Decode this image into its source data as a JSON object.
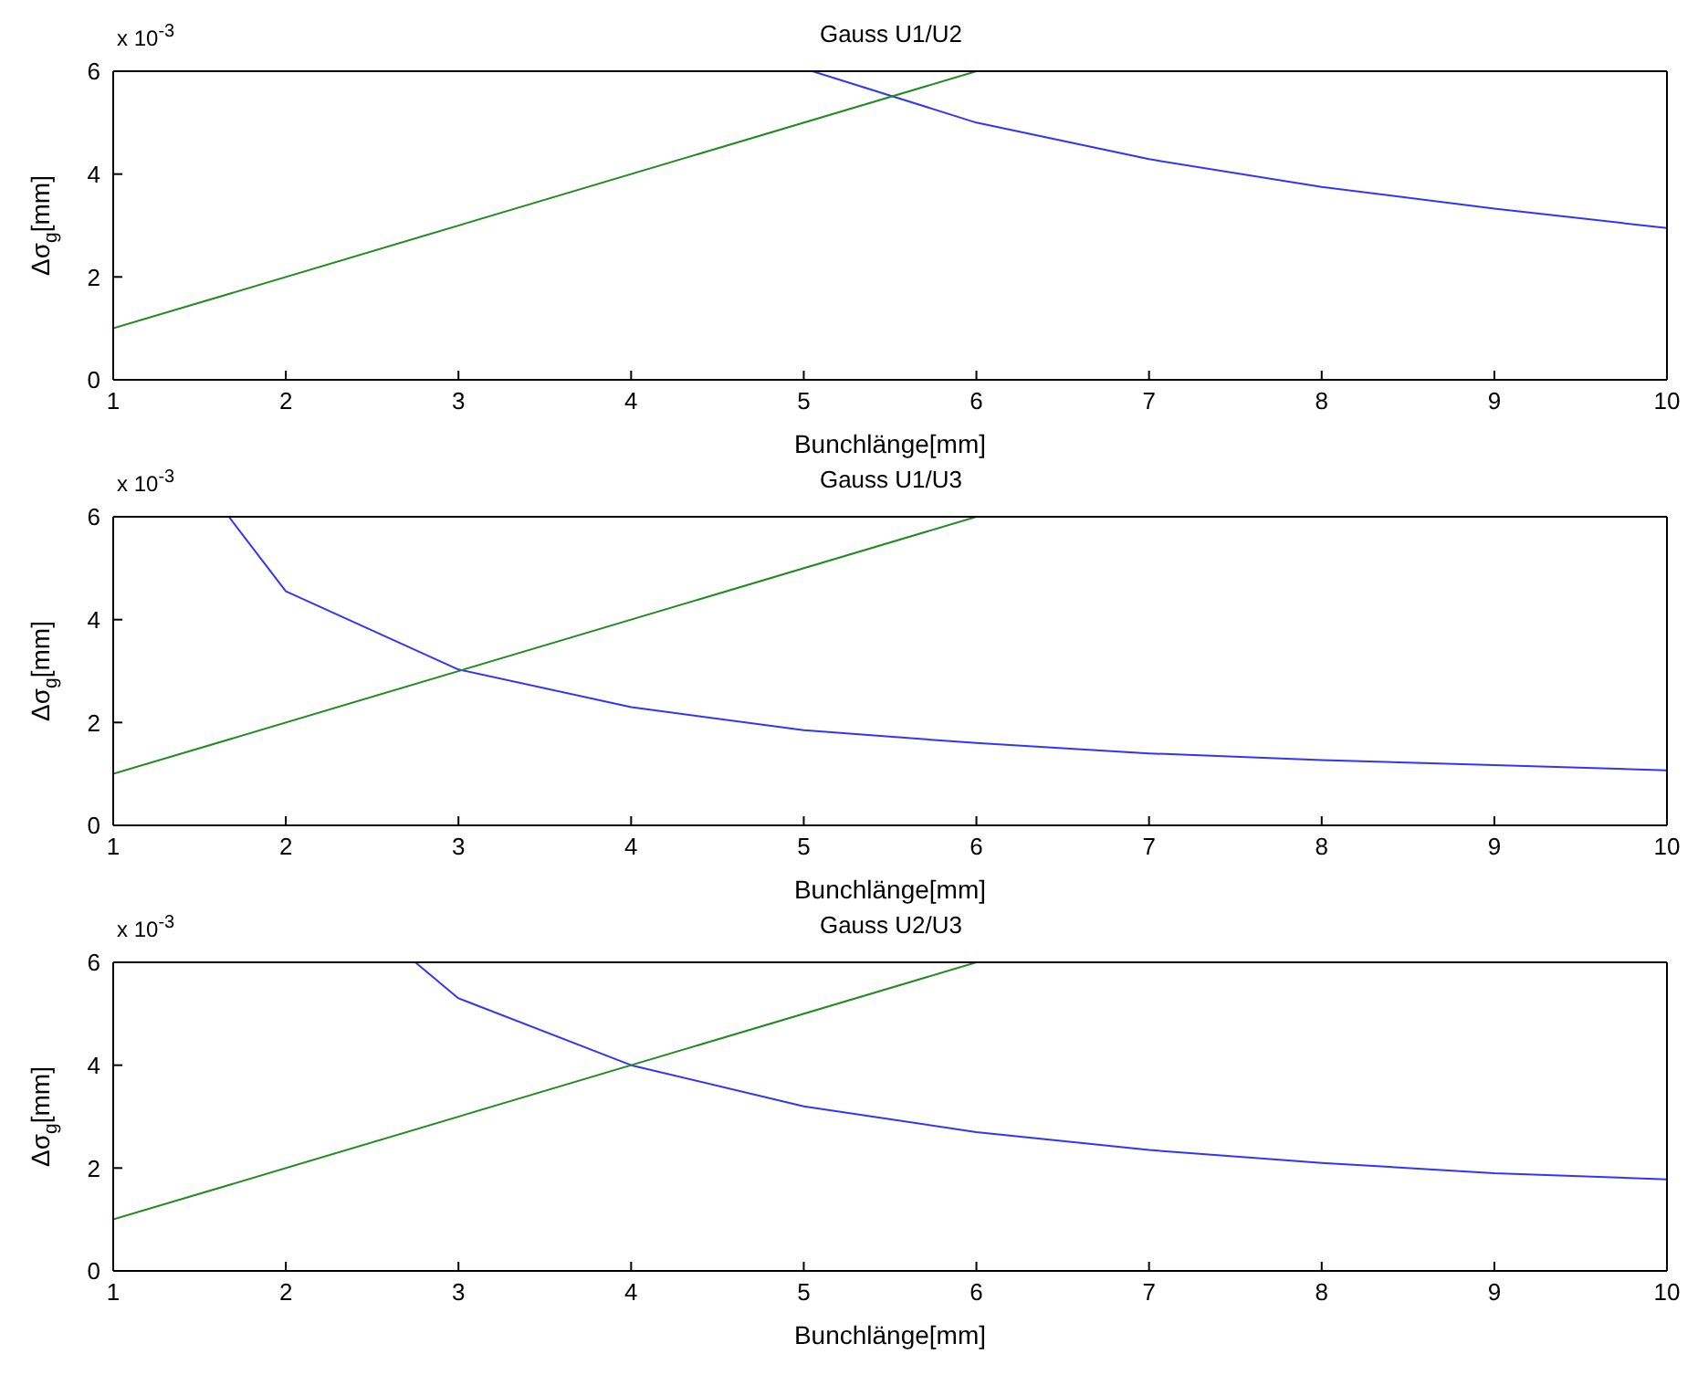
{
  "chart_data": [
    {
      "type": "line",
      "title": "Gauss U1/U2",
      "xlabel": "Bunchlänge[mm]",
      "ylabel": "Δσ$_{g}$[mm]",
      "annotations": [
        "x 10$^{-3}$"
      ],
      "xlim": [
        1,
        10
      ],
      "xticks": [
        1,
        2,
        3,
        4,
        5,
        6,
        7,
        8,
        9,
        10
      ],
      "ylim": [
        0,
        6
      ],
      "yticks": [
        0,
        2,
        4,
        6
      ],
      "series": [
        {
          "color": "#3333ff",
          "x": [
            5.05,
            6,
            7,
            8,
            9,
            10
          ],
          "values": [
            6,
            5,
            4.29,
            3.75,
            3.33,
            2.95
          ]
        },
        {
          "color": "#228b22",
          "x": [
            1,
            6
          ],
          "values": [
            1,
            6
          ]
        }
      ]
    },
    {
      "type": "line",
      "title": "Gauss U1/U3",
      "xlabel": "Bunchlänge[mm]",
      "ylabel": "Δσ$_{g}$[mm]",
      "annotations": [
        "x 10$^{-3}$"
      ],
      "xlim": [
        1,
        10
      ],
      "xticks": [
        1,
        2,
        3,
        4,
        5,
        6,
        7,
        8,
        9,
        10
      ],
      "ylim": [
        0,
        6
      ],
      "yticks": [
        0,
        2,
        4,
        6
      ],
      "series": [
        {
          "color": "#3333ff",
          "x": [
            1.67,
            2,
            3,
            4,
            5,
            6,
            7,
            8,
            9,
            10
          ],
          "values": [
            6,
            4.55,
            3.03,
            2.3,
            1.85,
            1.6,
            1.4,
            1.27,
            1.17,
            1.07
          ]
        },
        {
          "color": "#228b22",
          "x": [
            1,
            6
          ],
          "values": [
            1,
            6
          ]
        }
      ]
    },
    {
      "type": "line",
      "title": "Gauss U2/U3",
      "xlabel": "Bunchlänge[mm]",
      "ylabel": "Δσ$_{g}$[mm]",
      "annotations": [
        "x 10$^{-3}$"
      ],
      "xlim": [
        1,
        10
      ],
      "xticks": [
        1,
        2,
        3,
        4,
        5,
        6,
        7,
        8,
        9,
        10
      ],
      "ylim": [
        0,
        6
      ],
      "yticks": [
        0,
        2,
        4,
        6
      ],
      "series": [
        {
          "color": "#3333ff",
          "x": [
            2.75,
            3,
            4,
            5,
            6,
            7,
            8,
            9,
            10
          ],
          "values": [
            6,
            5.3,
            4,
            3.2,
            2.7,
            2.35,
            2.1,
            1.9,
            1.78
          ]
        },
        {
          "color": "#228b22",
          "x": [
            1,
            6
          ],
          "values": [
            1,
            6
          ]
        }
      ]
    }
  ]
}
